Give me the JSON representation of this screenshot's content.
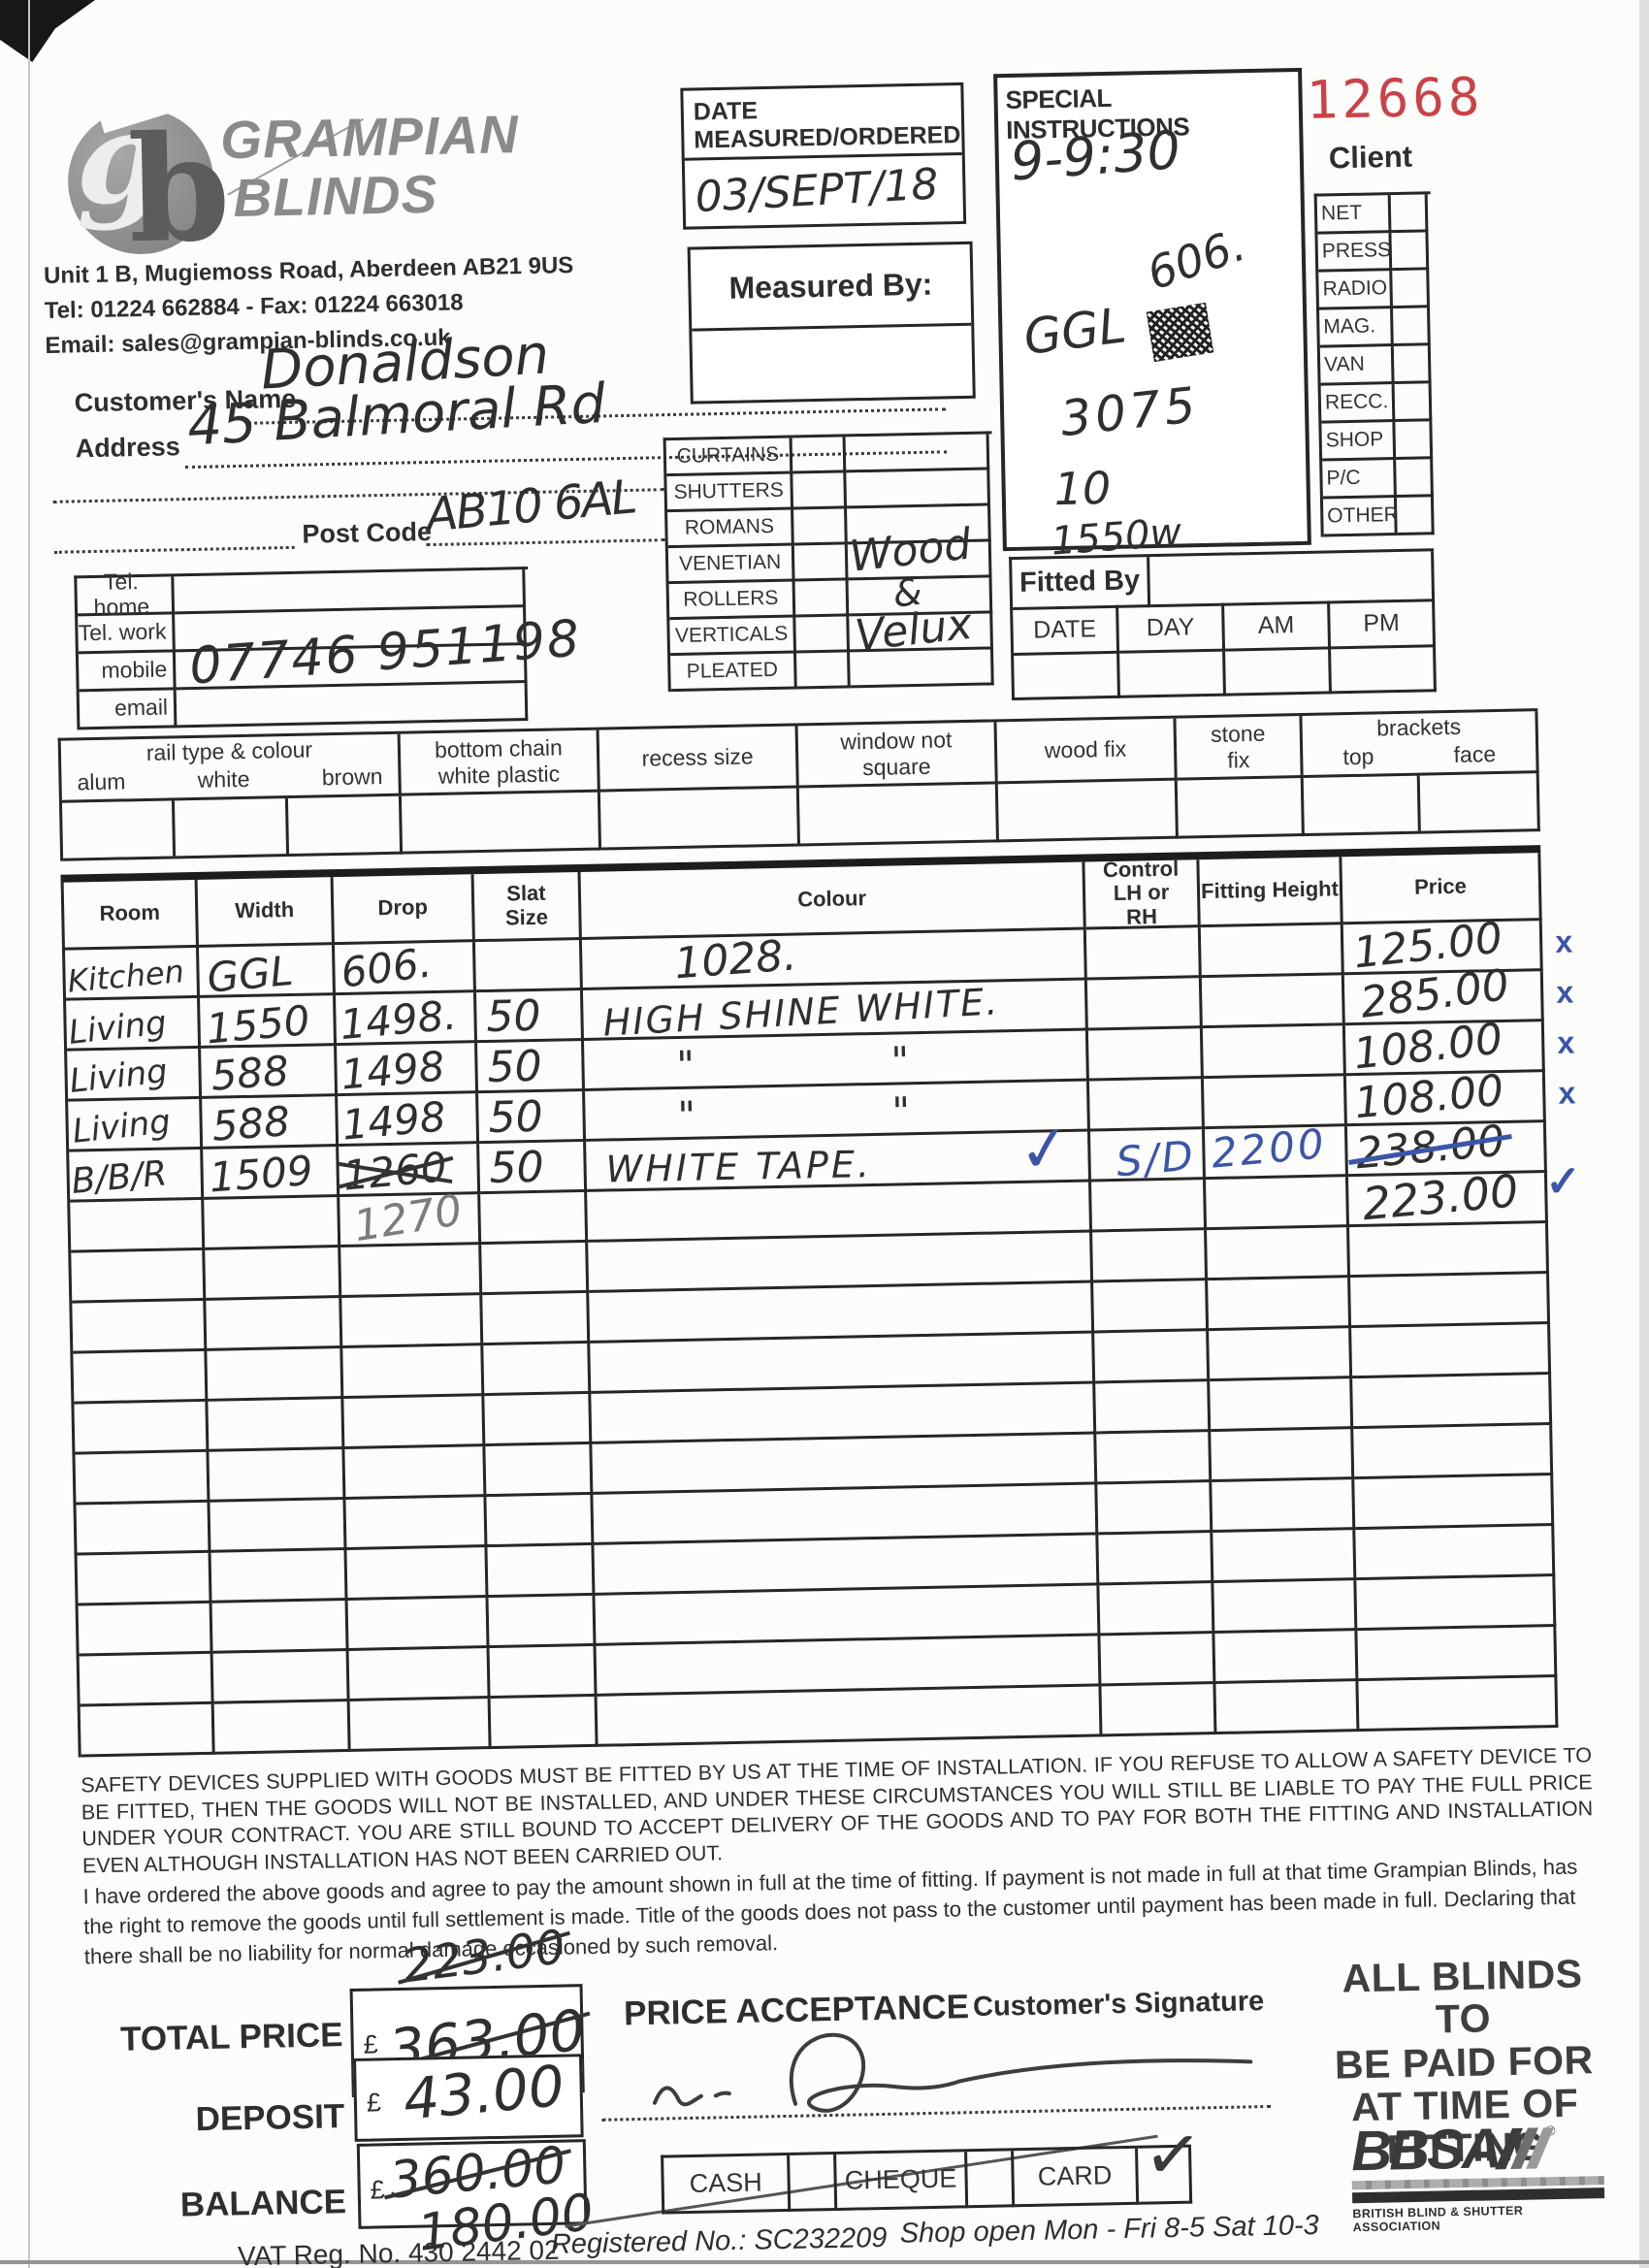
{
  "form_no": "12668",
  "colors": {
    "ink_blue": "#3b55a8",
    "stamp_red": "#cb4148",
    "logo_grey": "#8a8a8a"
  },
  "company": {
    "logo_g": "g",
    "logo_b": "b",
    "name1": "GRAMPIAN",
    "name2": "BLINDS",
    "address": "Unit 1 B, Mugiemoss Road, Aberdeen AB21 9US",
    "telfax": "Tel: 01224 662884   -   Fax: 01224 663018",
    "email": "Email: sales@grampian-blinds.co.uk"
  },
  "date_box": {
    "label": "DATE MEASURED/ORDERED",
    "value": "03/SEPT/18"
  },
  "measured_by": {
    "label": "Measured By:"
  },
  "special": {
    "title": "SPECIAL INSTRUCTIONS",
    "time": "9-9:30",
    "ggl": "GGL",
    "n606": "606.",
    "n3075": "3075",
    "n10": "10",
    "n1550": "1550w"
  },
  "client_panel": {
    "title": "Client",
    "items": [
      "NET",
      "PRESS",
      "RADIO",
      "MAG.",
      "VAN",
      "RECC.",
      "SHOP",
      "P/C",
      "OTHER"
    ]
  },
  "customer": {
    "name_label": "Customer's Name",
    "name_value": "Donaldson",
    "address_label": "Address",
    "address_value": "45 Balmoral Rd",
    "postcode_label": "Post Code",
    "postcode_value": "AB10 6AL",
    "phone_rows": [
      {
        "label": "Tel. home",
        "value": ""
      },
      {
        "label": "Tel. work",
        "value": ""
      },
      {
        "label": "mobile",
        "value": "07746 951198"
      },
      {
        "label": "email",
        "value": ""
      }
    ]
  },
  "product_checklist": {
    "items": [
      "CURTAINS",
      "SHUTTERS",
      "ROMANS",
      "VENETIAN",
      "ROLLERS",
      "VERTICALS",
      "PLEATED"
    ],
    "note": [
      "Wood",
      "&",
      "Velux"
    ]
  },
  "fitted_by": {
    "title": "Fitted By",
    "cols": [
      "DATE",
      "DAY",
      "AM",
      "PM"
    ]
  },
  "options_strip": {
    "rail_title": "rail type & colour",
    "rail_subs": [
      "alum",
      "white",
      "brown"
    ],
    "cols": [
      "bottom chain white plastic",
      "recess size",
      "window not square",
      "wood fix",
      "stone fix"
    ],
    "brackets_title": "brackets",
    "brackets_subs": [
      "top",
      "face"
    ]
  },
  "order_table": {
    "columns": [
      "Room",
      "Width",
      "Drop",
      "Slat Size",
      "Colour",
      "Control LH or RH",
      "Fitting Height",
      "Price"
    ],
    "rows": [
      {
        "room": "Kitchen",
        "width": "GGL",
        "drop": "606.",
        "slat": "",
        "colour": "1028.",
        "control": "",
        "fitting": "",
        "price": "125.00",
        "mark": "x"
      },
      {
        "room": "Living",
        "width": "1550",
        "drop": "1498.",
        "slat": "50",
        "colour": "HIGH SHINE WHITE.",
        "control": "",
        "fitting": "",
        "price": "285.00",
        "mark": "x"
      },
      {
        "room": "Living",
        "width": "588",
        "drop": "1498",
        "slat": "50",
        "colour": "\" \"",
        "control": "",
        "fitting": "",
        "price": "108.00",
        "mark": "x"
      },
      {
        "room": "Living",
        "width": "588",
        "drop": "1498",
        "slat": "50",
        "colour": "\" \"",
        "control": "",
        "fitting": "",
        "price": "108.00",
        "mark": "x"
      },
      {
        "room": "B/B/R",
        "width": "1509",
        "drop": "1260",
        "slat": "50",
        "colour": "WHITE TAPE.",
        "control": "✓",
        "fitting": "S/D 2200",
        "price": "238.00",
        "mark": ""
      },
      {
        "room": "",
        "width": "",
        "drop": "1270",
        "slat": "",
        "colour": "",
        "control": "",
        "fitting": "",
        "price": "223.00",
        "mark": "✓"
      }
    ]
  },
  "terms": {
    "para1": "SAFETY DEVICES SUPPLIED WITH GOODS MUST BE FITTED BY US AT THE TIME OF INSTALLATION. IF YOU REFUSE TO ALLOW A SAFETY DEVICE TO BE FITTED, THEN THE GOODS WILL NOT BE INSTALLED, AND UNDER THESE CIRCUMSTANCES YOU WILL STILL BE LIABLE TO PAY THE FULL PRICE UNDER YOUR CONTRACT. YOU ARE STILL BOUND TO ACCEPT DELIVERY OF THE GOODS AND TO PAY FOR BOTH THE FITTING AND INSTALLATION EVEN ALTHOUGH INSTALLATION HAS NOT BEEN CARRIED OUT.",
    "para2": "I have ordered the above goods and agree to pay the amount shown in full at the time of fitting. If payment is not made in full at that time Grampian Blinds, has the right to remove the goods until full settlement is made. Title of the goods does not pass to the customer until payment has been made in full. Declaring that there shall be no liability for normal damage occasioned by such removal."
  },
  "totals": {
    "currency": "£",
    "pre_total": "223.00",
    "total_label": "TOTAL PRICE",
    "total_value": "363.00",
    "deposit_label": "DEPOSIT",
    "deposit_value": "43.00",
    "balance_label": "BALANCE",
    "balance_old": "360.00",
    "balance_new": "180.00",
    "price_acceptance": "PRICE ACCEPTANCE",
    "signature_label": "Customer's Signature"
  },
  "payment": {
    "methods": [
      "CASH",
      "CHEQUE",
      "CARD"
    ],
    "tick": "✓",
    "selected": "CARD"
  },
  "right_notice": {
    "lines": [
      "ALL BLINDS TO",
      "BE PAID FOR",
      "AT TIME OF",
      "FITTING"
    ]
  },
  "bbsa": {
    "name": "BBSA",
    "caption": "BRITISH BLIND & SHUTTER ASSOCIATION"
  },
  "footer": {
    "vat": "VAT Reg. No. 430 2442 02",
    "registered": "Registered No.: SC232209",
    "hours": "Shop open Mon - Fri 8-5  Sat 10-3"
  }
}
